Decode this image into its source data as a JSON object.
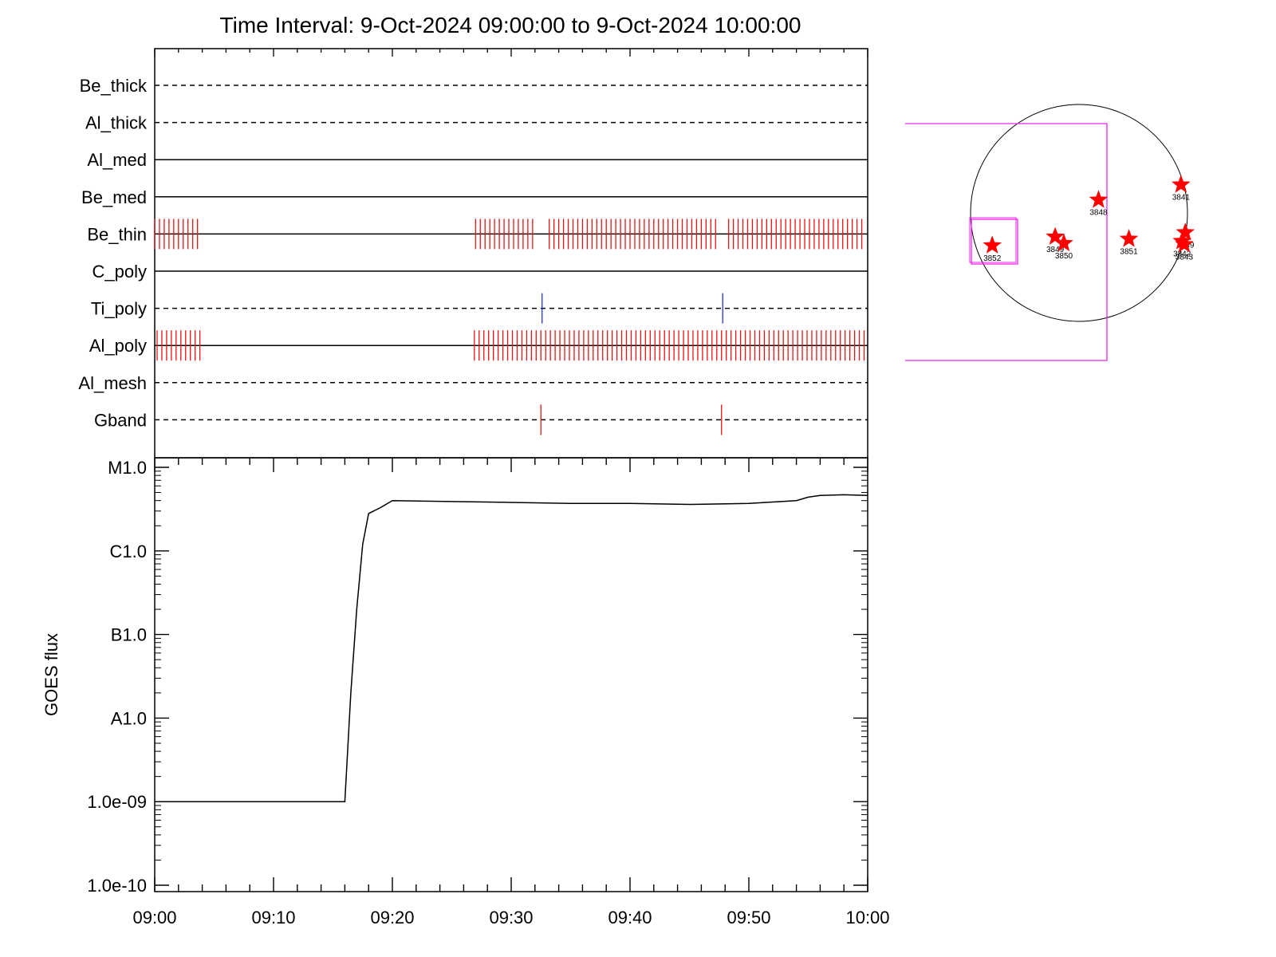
{
  "title": "Time Interval:  9-Oct-2024 09:00:00 to  9-Oct-2024 10:00:00",
  "colors": {
    "flag": "#ee1111",
    "flag_blue": "#2233dd",
    "box": "#ee22ee",
    "star": "#ff0000",
    "axis": "#000000"
  },
  "chart_data": [
    {
      "type": "event-timeline",
      "x_range_minutes": [
        0,
        60
      ],
      "x_tick_labels": [
        "09:00",
        "09:10",
        "09:20",
        "09:30",
        "09:40",
        "09:50",
        "10:00"
      ],
      "rows": [
        {
          "name": "Be_thick",
          "line": "dashed",
          "marks": []
        },
        {
          "name": "Al_thick",
          "line": "dashed",
          "marks": []
        },
        {
          "name": "Al_med",
          "line": "solid",
          "marks": []
        },
        {
          "name": "Be_med",
          "line": "solid",
          "marks": []
        },
        {
          "name": "Be_thin",
          "line": "solid",
          "mark_color": "red",
          "mark_ranges": [
            [
              0.0,
              3.6,
              0.4
            ],
            [
              27.0,
              32.0,
              0.4
            ],
            [
              33.2,
              47.5,
              0.4
            ],
            [
              48.3,
              59.7,
              0.4
            ]
          ]
        },
        {
          "name": "C_poly",
          "line": "solid",
          "marks": []
        },
        {
          "name": "Ti_poly",
          "line": "dashed",
          "mark_color": "blue",
          "marks": [
            32.6,
            47.8
          ]
        },
        {
          "name": "Al_poly",
          "line": "solid",
          "mark_color": "red",
          "mark_ranges": [
            [
              0.2,
              3.8,
              0.4
            ],
            [
              26.9,
              59.9,
              0.4
            ]
          ]
        },
        {
          "name": "Al_mesh",
          "line": "dashed",
          "marks": []
        },
        {
          "name": "Gband",
          "line": "dashed",
          "mark_color": "red",
          "marks": [
            32.5,
            47.7
          ]
        }
      ]
    },
    {
      "type": "line",
      "ylabel": "GOES flux",
      "y_scale": "log",
      "ylim": [
        1e-10,
        1e-05
      ],
      "y_tick_labels": [
        "M1.0",
        "C1.0",
        "B1.0",
        "A1.0",
        "1.0e-09",
        "1.0e-10"
      ],
      "y_tick_values": [
        1e-05,
        1e-06,
        1e-07,
        1e-08,
        1e-09,
        1e-10
      ],
      "x_range_minutes": [
        0,
        60
      ],
      "x_tick_labels": [
        "09:00",
        "09:10",
        "09:20",
        "09:30",
        "09:40",
        "09:50",
        "10:00"
      ],
      "series": [
        {
          "x_minutes": [
            0,
            16,
            16.5,
            17,
            17.5,
            18,
            19,
            20,
            25,
            30,
            35,
            40,
            45,
            50,
            54,
            55,
            56,
            58,
            60
          ],
          "values": [
            1e-09,
            1e-09,
            2e-08,
            2e-07,
            1.2e-06,
            2.8e-06,
            3.3e-06,
            4e-06,
            3.9e-06,
            3.8e-06,
            3.7e-06,
            3.7e-06,
            3.6e-06,
            3.7e-06,
            4e-06,
            4.4e-06,
            4.6e-06,
            4.7e-06,
            4.6e-06
          ]
        }
      ]
    },
    {
      "type": "scatter",
      "subject": "solar disk active regions",
      "points": [
        {
          "label": "3852",
          "x": -0.8,
          "y": -0.3
        },
        {
          "label": "3849",
          "x": -0.22,
          "y": -0.22
        },
        {
          "label": "3850",
          "x": -0.14,
          "y": -0.28
        },
        {
          "label": "3848",
          "x": 0.18,
          "y": 0.12
        },
        {
          "label": "3851",
          "x": 0.46,
          "y": -0.24
        },
        {
          "label": "3841",
          "x": 0.94,
          "y": 0.26
        },
        {
          "label": "3839",
          "x": 0.98,
          "y": -0.18
        },
        {
          "label": "3842",
          "x": 0.95,
          "y": -0.26
        },
        {
          "label": "3843",
          "x": 0.97,
          "y": -0.29
        }
      ]
    }
  ]
}
